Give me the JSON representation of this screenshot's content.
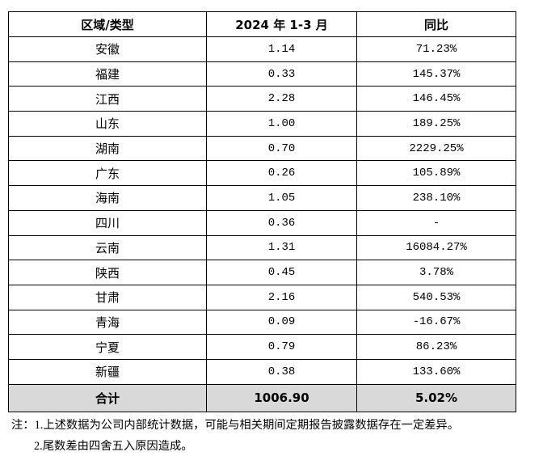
{
  "table": {
    "header": [
      "区域/类型",
      "2024 年 1-3 月",
      "同比"
    ],
    "rows": [
      [
        "安徽",
        "1.14",
        "71.23%"
      ],
      [
        "福建",
        "0.33",
        "145.37%"
      ],
      [
        "江西",
        "2.28",
        "146.45%"
      ],
      [
        "山东",
        "1.00",
        "189.25%"
      ],
      [
        "湖南",
        "0.70",
        "2229.25%"
      ],
      [
        "广东",
        "0.26",
        "105.89%"
      ],
      [
        "海南",
        "1.05",
        "238.10%"
      ],
      [
        "四川",
        "0.36",
        "-"
      ],
      [
        "云南",
        "1.31",
        "16084.27%"
      ],
      [
        "陕西",
        "0.45",
        "3.78%"
      ],
      [
        "甘肃",
        "2.16",
        "540.53%"
      ],
      [
        "青海",
        "0.09",
        "-16.67%"
      ],
      [
        "宁夏",
        "0.79",
        "86.23%"
      ],
      [
        "新疆",
        "0.38",
        "133.60%"
      ]
    ],
    "total": [
      "合计",
      "1006.90",
      "5.02%"
    ]
  },
  "notes": {
    "label": "注：",
    "items": [
      "1.上述数据为公司内部统计数据，可能与相关期间定期报告披露数据存在一定差异。",
      "2.尾数差由四舍五入原因造成。"
    ]
  }
}
